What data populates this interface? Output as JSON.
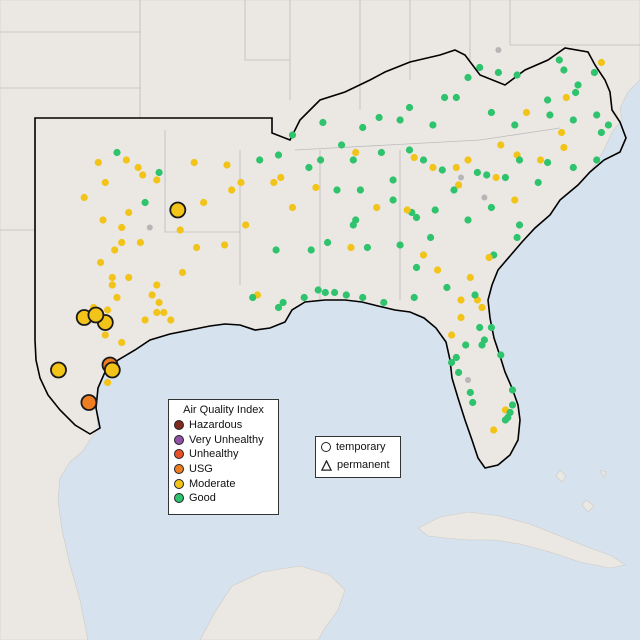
{
  "legend": {
    "title": "Air Quality Index",
    "categories": [
      {
        "label": "Hazardous",
        "color": "#7e2b1e"
      },
      {
        "label": "Very Unhealthy",
        "color": "#8f52a6"
      },
      {
        "label": "Unhealthy",
        "color": "#e8502a"
      },
      {
        "label": "USG",
        "color": "#ef7d22"
      },
      {
        "label": "Moderate",
        "color": "#f2c318"
      },
      {
        "label": "Good",
        "color": "#2ec36c"
      }
    ]
  },
  "shape_legend": {
    "temporary_label": "temporary",
    "permanent_label": "permanent"
  },
  "colors": {
    "water": "#d6e3ee",
    "land": "#ebe7e3",
    "region_outline": "#000000",
    "borders": "#bdbdbd",
    "no_data_marker": "#b6b6b6"
  },
  "markers": {
    "temporary_large": [
      {
        "level": "Moderate",
        "lon": -94.4,
        "lat": 33.9
      },
      {
        "level": "Moderate",
        "lon": -97.5,
        "lat": 29.4
      },
      {
        "level": "Moderate",
        "lon": -98.4,
        "lat": 29.6
      },
      {
        "level": "Moderate",
        "lon": -97.9,
        "lat": 29.7
      },
      {
        "level": "Moderate",
        "lon": -99.5,
        "lat": 27.5
      },
      {
        "level": "USG",
        "lon": -97.3,
        "lat": 27.7
      },
      {
        "level": "Moderate",
        "lon": -97.2,
        "lat": 27.5
      },
      {
        "level": "USG",
        "lon": -98.2,
        "lat": 26.2
      }
    ],
    "permanent": [
      {
        "level": "Good",
        "lon": -95.8,
        "lat": 34.2
      },
      {
        "level": "Moderate",
        "lon": -96.5,
        "lat": 33.8
      },
      {
        "level": "Good",
        "lon": -90.1,
        "lat": 36.1
      },
      {
        "level": "Moderate",
        "lon": -97.6,
        "lat": 33.5
      },
      {
        "level": "Moderate",
        "lon": -96.8,
        "lat": 33.2
      },
      {
        "level": "Moderate",
        "lon": -96.8,
        "lat": 32.6
      },
      {
        "level": "Moderate",
        "lon": -97.1,
        "lat": 32.3
      },
      {
        "level": "Moderate",
        "lon": -96.0,
        "lat": 32.6
      },
      {
        "level": "Moderate",
        "lon": -97.7,
        "lat": 31.8
      },
      {
        "level": "Moderate",
        "lon": -96.5,
        "lat": 31.2
      },
      {
        "level": "Moderate",
        "lon": -97.2,
        "lat": 31.2
      },
      {
        "level": "Moderate",
        "lon": -95.5,
        "lat": 30.5
      },
      {
        "level": "Moderate",
        "lon": -95.2,
        "lat": 30.2
      },
      {
        "level": "Moderate",
        "lon": -94.2,
        "lat": 31.4
      },
      {
        "level": "Moderate",
        "lon": -93.6,
        "lat": 32.4
      },
      {
        "level": "Moderate",
        "lon": -94.3,
        "lat": 33.1
      },
      {
        "level": "Moderate",
        "lon": -92.4,
        "lat": 32.5
      },
      {
        "level": "Moderate",
        "lon": -92.1,
        "lat": 34.7
      },
      {
        "level": "Moderate",
        "lon": -91.7,
        "lat": 35.0
      },
      {
        "level": "Moderate",
        "lon": -92.3,
        "lat": 35.7
      },
      {
        "level": "Moderate",
        "lon": -95.3,
        "lat": 30.9
      },
      {
        "level": "Moderate",
        "lon": -95.0,
        "lat": 29.8
      },
      {
        "level": "Moderate",
        "lon": -95.3,
        "lat": 29.8
      },
      {
        "level": "Moderate",
        "lon": -94.7,
        "lat": 29.5
      },
      {
        "level": "Moderate",
        "lon": -97.0,
        "lat": 30.4
      },
      {
        "level": "Moderate",
        "lon": -97.4,
        "lat": 29.9
      },
      {
        "level": "Moderate",
        "lon": -98.0,
        "lat": 30.0
      },
      {
        "level": "Moderate",
        "lon": -97.2,
        "lat": 30.9
      },
      {
        "level": "Moderate",
        "lon": -97.5,
        "lat": 28.9
      },
      {
        "level": "Moderate",
        "lon": -96.8,
        "lat": 28.6
      },
      {
        "level": "Moderate",
        "lon": -95.8,
        "lat": 29.5
      },
      {
        "level": "Moderate",
        "lon": -97.8,
        "lat": 35.8
      },
      {
        "level": "Good",
        "lon": -97.0,
        "lat": 36.2
      },
      {
        "level": "Moderate",
        "lon": -95.9,
        "lat": 35.3
      },
      {
        "level": "Moderate",
        "lon": -96.1,
        "lat": 35.6
      },
      {
        "level": "Moderate",
        "lon": -95.3,
        "lat": 35.1
      },
      {
        "level": "Moderate",
        "lon": -93.7,
        "lat": 35.8
      },
      {
        "level": "Moderate",
        "lon": -98.4,
        "lat": 34.4
      },
      {
        "level": "Moderate",
        "lon": -97.5,
        "lat": 35.0
      },
      {
        "level": "Good",
        "lon": -95.2,
        "lat": 35.4
      },
      {
        "level": "Moderate",
        "lon": -93.3,
        "lat": 34.2
      },
      {
        "level": "Moderate",
        "lon": -91.5,
        "lat": 33.3
      },
      {
        "level": "Moderate",
        "lon": -90.3,
        "lat": 35.0
      },
      {
        "level": "Moderate",
        "lon": -90.0,
        "lat": 35.2
      },
      {
        "level": "Good",
        "lon": -90.9,
        "lat": 35.9
      },
      {
        "level": "Good",
        "lon": -89.5,
        "lat": 36.9
      },
      {
        "level": "Good",
        "lon": -88.2,
        "lat": 37.4
      },
      {
        "level": "Good",
        "lon": -86.5,
        "lat": 37.2
      },
      {
        "level": "Good",
        "lon": -85.8,
        "lat": 37.6
      },
      {
        "level": "Good",
        "lon": -84.5,
        "lat": 38.0
      },
      {
        "level": "Good",
        "lon": -84.9,
        "lat": 37.5
      },
      {
        "level": "Good",
        "lon": -83.5,
        "lat": 37.3
      },
      {
        "level": "Good",
        "lon": -83.0,
        "lat": 38.4
      },
      {
        "level": "Good",
        "lon": -82.5,
        "lat": 38.4
      },
      {
        "level": "Good",
        "lon": -82.0,
        "lat": 39.2
      },
      {
        "level": "Good",
        "lon": -81.5,
        "lat": 39.6
      },
      {
        "level": "Good",
        "lon": -80.7,
        "lat": 39.4
      },
      {
        "level": "Good",
        "lon": -79.9,
        "lat": 39.3
      },
      {
        "level": "Good",
        "lon": -78.6,
        "lat": 38.3
      },
      {
        "level": "Good",
        "lon": -77.4,
        "lat": 38.6
      },
      {
        "level": "Good",
        "lon": -77.9,
        "lat": 39.5
      },
      {
        "level": "Good",
        "lon": -76.6,
        "lat": 39.4
      },
      {
        "level": "Good",
        "lon": -77.3,
        "lat": 38.9
      },
      {
        "level": "Good",
        "lon": -76.5,
        "lat": 37.7
      },
      {
        "level": "Good",
        "lon": -76.3,
        "lat": 37.0
      },
      {
        "level": "Good",
        "lon": -77.5,
        "lat": 37.5
      },
      {
        "level": "Good",
        "lon": -78.5,
        "lat": 37.7
      },
      {
        "level": "Good",
        "lon": -80.0,
        "lat": 37.3
      },
      {
        "level": "Good",
        "lon": -81.0,
        "lat": 37.8
      },
      {
        "level": "Moderate",
        "lon": -79.9,
        "lat": 36.1
      },
      {
        "level": "Good",
        "lon": -79.8,
        "lat": 35.9
      },
      {
        "level": "Moderate",
        "lon": -78.9,
        "lat": 35.9
      },
      {
        "level": "Good",
        "lon": -78.6,
        "lat": 35.8
      },
      {
        "level": "Good",
        "lon": -77.5,
        "lat": 35.6
      },
      {
        "level": "Good",
        "lon": -76.5,
        "lat": 35.9
      },
      {
        "level": "Good",
        "lon": -79.0,
        "lat": 35.0
      },
      {
        "level": "Good",
        "lon": -80.4,
        "lat": 35.2
      },
      {
        "level": "Moderate",
        "lon": -80.8,
        "lat": 35.2
      },
      {
        "level": "Good",
        "lon": -81.2,
        "lat": 35.3
      },
      {
        "level": "Good",
        "lon": -81.6,
        "lat": 35.4
      },
      {
        "level": "Moderate",
        "lon": -82.0,
        "lat": 35.9
      },
      {
        "level": "Moderate",
        "lon": -82.5,
        "lat": 35.6
      },
      {
        "level": "Good",
        "lon": -83.1,
        "lat": 35.5
      },
      {
        "level": "Moderate",
        "lon": -83.5,
        "lat": 35.6
      },
      {
        "level": "Good",
        "lon": -83.9,
        "lat": 35.9
      },
      {
        "level": "Moderate",
        "lon": -84.3,
        "lat": 36.0
      },
      {
        "level": "Good",
        "lon": -84.5,
        "lat": 36.3
      },
      {
        "level": "Good",
        "lon": -85.2,
        "lat": 35.1
      },
      {
        "level": "Good",
        "lon": -85.7,
        "lat": 36.2
      },
      {
        "level": "Moderate",
        "lon": -86.8,
        "lat": 36.2
      },
      {
        "level": "Good",
        "lon": -86.9,
        "lat": 35.9
      },
      {
        "level": "Good",
        "lon": -87.4,
        "lat": 36.5
      },
      {
        "level": "Good",
        "lon": -88.3,
        "lat": 35.9
      },
      {
        "level": "Good",
        "lon": -88.8,
        "lat": 35.6
      },
      {
        "level": "Moderate",
        "lon": -88.5,
        "lat": 34.8
      },
      {
        "level": "Good",
        "lon": -87.6,
        "lat": 34.7
      },
      {
        "level": "Good",
        "lon": -86.6,
        "lat": 34.7
      },
      {
        "level": "Good",
        "lon": -86.8,
        "lat": 33.5
      },
      {
        "level": "Good",
        "lon": -86.9,
        "lat": 33.3
      },
      {
        "level": "Moderate",
        "lon": -85.9,
        "lat": 34.0
      },
      {
        "level": "Good",
        "lon": -85.2,
        "lat": 34.3
      },
      {
        "level": "Good",
        "lon": -84.4,
        "lat": 33.8
      },
      {
        "level": "Good",
        "lon": -84.2,
        "lat": 33.6
      },
      {
        "level": "Moderate",
        "lon": -84.6,
        "lat": 33.9
      },
      {
        "level": "Good",
        "lon": -83.4,
        "lat": 33.9
      },
      {
        "level": "Good",
        "lon": -82.0,
        "lat": 33.5
      },
      {
        "level": "Good",
        "lon": -81.0,
        "lat": 34.0
      },
      {
        "level": "Moderate",
        "lon": -82.4,
        "lat": 34.9
      },
      {
        "level": "Good",
        "lon": -82.6,
        "lat": 34.7
      },
      {
        "level": "Moderate",
        "lon": -80.0,
        "lat": 34.3
      },
      {
        "level": "Good",
        "lon": -79.8,
        "lat": 33.3
      },
      {
        "level": "Good",
        "lon": -79.9,
        "lat": 32.8
      },
      {
        "level": "Good",
        "lon": -80.9,
        "lat": 32.1
      },
      {
        "level": "Moderate",
        "lon": -81.1,
        "lat": 32.0
      },
      {
        "level": "Good",
        "lon": -83.6,
        "lat": 32.8
      },
      {
        "level": "Good",
        "lon": -84.9,
        "lat": 32.5
      },
      {
        "level": "Moderate",
        "lon": -83.9,
        "lat": 32.1
      },
      {
        "level": "Good",
        "lon": -84.2,
        "lat": 31.6
      },
      {
        "level": "Good",
        "lon": -86.3,
        "lat": 32.4
      },
      {
        "level": "Moderate",
        "lon": -87.0,
        "lat": 32.4
      },
      {
        "level": "Good",
        "lon": -88.0,
        "lat": 32.6
      },
      {
        "level": "Good",
        "lon": -88.7,
        "lat": 32.3
      },
      {
        "level": "Moderate",
        "lon": -89.5,
        "lat": 34.0
      },
      {
        "level": "Good",
        "lon": -90.2,
        "lat": 32.3
      },
      {
        "level": "Moderate",
        "lon": -91.0,
        "lat": 30.5
      },
      {
        "level": "Good",
        "lon": -91.2,
        "lat": 30.4
      },
      {
        "level": "Good",
        "lon": -90.1,
        "lat": 30.0
      },
      {
        "level": "Good",
        "lon": -89.9,
        "lat": 30.2
      },
      {
        "level": "Good",
        "lon": -89.0,
        "lat": 30.4
      },
      {
        "level": "Good",
        "lon": -88.4,
        "lat": 30.7
      },
      {
        "level": "Good",
        "lon": -88.1,
        "lat": 30.6
      },
      {
        "level": "Good",
        "lon": -87.2,
        "lat": 30.5
      },
      {
        "level": "Good",
        "lon": -87.7,
        "lat": 30.6
      },
      {
        "level": "Good",
        "lon": -86.5,
        "lat": 30.4
      },
      {
        "level": "Good",
        "lon": -85.6,
        "lat": 30.2
      },
      {
        "level": "Good",
        "lon": -84.3,
        "lat": 30.4
      },
      {
        "level": "Moderate",
        "lon": -82.3,
        "lat": 30.3
      },
      {
        "level": "Moderate",
        "lon": -81.6,
        "lat": 30.3
      },
      {
        "level": "Moderate",
        "lon": -81.4,
        "lat": 30.0
      },
      {
        "level": "Good",
        "lon": -81.7,
        "lat": 30.5
      },
      {
        "level": "Moderate",
        "lon": -82.3,
        "lat": 29.6
      },
      {
        "level": "Good",
        "lon": -81.5,
        "lat": 29.2
      },
      {
        "level": "Good",
        "lon": -81.0,
        "lat": 29.2
      },
      {
        "level": "Good",
        "lon": -81.4,
        "lat": 28.5
      },
      {
        "level": "Good",
        "lon": -81.3,
        "lat": 28.7
      },
      {
        "level": "Good",
        "lon": -80.6,
        "lat": 28.1
      },
      {
        "level": "Good",
        "lon": -82.5,
        "lat": 28.0
      },
      {
        "level": "Good",
        "lon": -82.7,
        "lat": 27.8
      },
      {
        "level": "Good",
        "lon": -82.4,
        "lat": 27.4
      },
      {
        "level": "Good",
        "lon": -81.9,
        "lat": 26.6
      },
      {
        "level": "Good",
        "lon": -81.8,
        "lat": 26.2
      },
      {
        "level": "Moderate",
        "lon": -80.4,
        "lat": 25.9
      },
      {
        "level": "Good",
        "lon": -80.2,
        "lat": 25.8
      },
      {
        "level": "Good",
        "lon": -80.1,
        "lat": 26.1
      },
      {
        "level": "Good",
        "lon": -80.1,
        "lat": 26.7
      },
      {
        "level": "Good",
        "lon": -80.3,
        "lat": 25.6
      },
      {
        "level": "Good",
        "lon": -80.4,
        "lat": 25.5
      },
      {
        "level": "Moderate",
        "lon": -80.9,
        "lat": 25.1
      },
      {
        "level": "Good",
        "lon": -82.1,
        "lat": 28.5
      },
      {
        "level": "Moderate",
        "lon": -82.7,
        "lat": 28.9
      },
      {
        "level": "Moderate",
        "lon": -81.9,
        "lat": 31.2
      },
      {
        "level": "Moderate",
        "lon": -83.3,
        "lat": 31.5
      },
      {
        "level": "Good",
        "lon": -82.9,
        "lat": 30.8
      },
      {
        "level": "Moderate",
        "lon": -80.6,
        "lat": 36.5
      },
      {
        "level": "Moderate",
        "lon": -79.5,
        "lat": 37.8
      },
      {
        "level": "Moderate",
        "lon": -77.9,
        "lat": 36.4
      },
      {
        "level": "Moderate",
        "lon": -78.0,
        "lat": 37.0
      },
      {
        "level": "Moderate",
        "lon": -77.8,
        "lat": 38.4
      },
      {
        "level": "Moderate",
        "lon": -76.3,
        "lat": 39.8
      },
      {
        "level": "Good",
        "lon": -76.0,
        "lat": 37.3
      },
      {
        "level": "Good",
        "lon": -78.1,
        "lat": 39.9
      },
      {
        "level": "Moderate",
        "lon": -97.4,
        "lat": 27.0
      },
      {
        "level": "Moderate",
        "lon": -96.6,
        "lat": 35.9
      }
    ],
    "no_data": [
      {
        "lon": -95.6,
        "lat": 33.2
      },
      {
        "lon": -80.7,
        "lat": 40.3
      },
      {
        "lon": -81.3,
        "lat": 34.4
      },
      {
        "lon": -82.0,
        "lat": 27.1
      },
      {
        "lon": -82.3,
        "lat": 35.2
      }
    ]
  }
}
